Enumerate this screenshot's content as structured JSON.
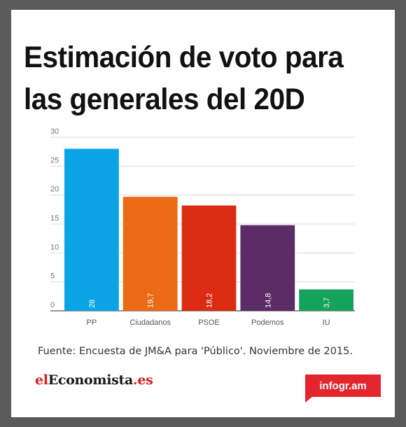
{
  "title": "Estimación de voto para las generales del 20D",
  "source": "Fuente: Encuesta de JM&A para 'Público'.  Noviembre de 2015.",
  "logo": {
    "part1": "el",
    "part2": "Economista",
    "part3": ".es"
  },
  "badge": {
    "label": "infogr.am"
  },
  "chart_data": {
    "type": "bar",
    "title": "Estimación de voto para las generales del 20D",
    "xlabel": "",
    "ylabel": "",
    "ylim": [
      0,
      30
    ],
    "yticks": [
      0,
      5,
      10,
      15,
      20,
      25,
      30
    ],
    "grid": true,
    "categories": [
      "PP",
      "Ciudadanos",
      "PSOE",
      "Podemos",
      "IU"
    ],
    "values": [
      28,
      19.7,
      18.2,
      14.8,
      3.7
    ],
    "value_labels": [
      "28",
      "19,7",
      "18,2",
      "14,8",
      "3,7"
    ],
    "colors": [
      "#0aa3e5",
      "#eb6a15",
      "#db2b12",
      "#5c2c66",
      "#15a25a"
    ]
  }
}
